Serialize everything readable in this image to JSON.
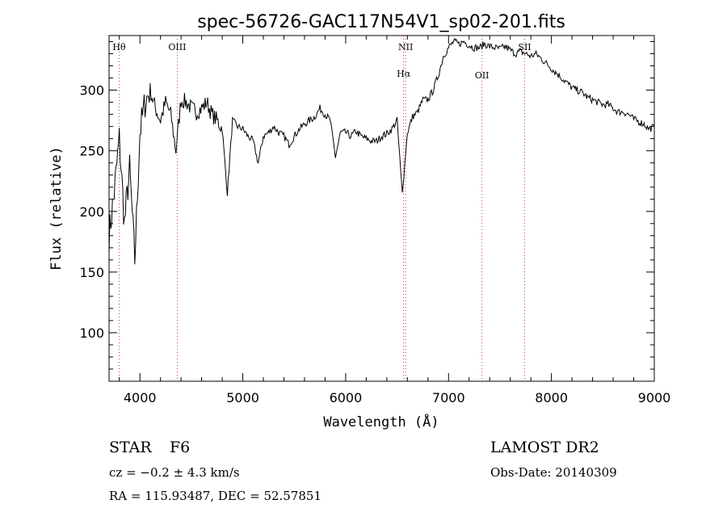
{
  "chart_data": {
    "type": "line",
    "title": "spec-56726-GAC117N54V1_sp02-201.fits",
    "xlabel": "Wavelength (Å)",
    "ylabel": "Flux (relative)",
    "xlim": [
      3700,
      9000
    ],
    "ylim": [
      60,
      345
    ],
    "x_ticks": [
      4000,
      5000,
      6000,
      7000,
      8000,
      9000
    ],
    "y_ticks": [
      100,
      150,
      200,
      250,
      300
    ],
    "grid": false,
    "line_color": "#000000",
    "marker_color": "#c04040",
    "series": [
      {
        "x": [
          3700,
          3750,
          3800,
          3850,
          3900,
          3950,
          4000,
          4050,
          4100,
          4150,
          4200,
          4250,
          4300,
          4350,
          4400,
          4450,
          4500,
          4550,
          4600,
          4650,
          4700,
          4750,
          4800,
          4850,
          4900,
          4950,
          5000,
          5050,
          5100,
          5150,
          5200,
          5250,
          5300,
          5350,
          5400,
          5450,
          5500,
          5550,
          5600,
          5650,
          5700,
          5750,
          5800,
          5850,
          5900,
          5950,
          6000,
          6050,
          6100,
          6150,
          6200,
          6250,
          6300,
          6350,
          6400,
          6450,
          6500,
          6550,
          6600,
          6650,
          6700,
          6750,
          6800,
          6850,
          6900,
          6950,
          7000,
          7050,
          7100,
          7150,
          7200,
          7250,
          7300,
          7350,
          7400,
          7450,
          7500,
          7550,
          7600,
          7650,
          7700,
          7750,
          7800,
          7850,
          7900,
          7950,
          8000,
          8050,
          8100,
          8150,
          8200,
          8250,
          8300,
          8350,
          8400,
          8450,
          8500,
          8550,
          8600,
          8650,
          8700,
          8750,
          8800,
          8850,
          8900,
          8950,
          9000
        ],
        "y": [
          180,
          215,
          260,
          190,
          235,
          160,
          265,
          290,
          300,
          285,
          275,
          290,
          280,
          250,
          292,
          290,
          285,
          282,
          285,
          290,
          280,
          275,
          268,
          215,
          275,
          270,
          268,
          262,
          258,
          240,
          262,
          265,
          270,
          265,
          262,
          255,
          262,
          268,
          272,
          275,
          278,
          285,
          280,
          275,
          245,
          265,
          265,
          262,
          266,
          262,
          260,
          258,
          258,
          262,
          264,
          268,
          275,
          215,
          265,
          278,
          282,
          292,
          292,
          300,
          312,
          328,
          335,
          340,
          338,
          340,
          337,
          335,
          335,
          338,
          336,
          335,
          334,
          336,
          333,
          330,
          332,
          330,
          328,
          330,
          326,
          322,
          318,
          314,
          310,
          306,
          302,
          300,
          298,
          294,
          292,
          290,
          288,
          288,
          285,
          282,
          282,
          280,
          276,
          274,
          272,
          268,
          270
        ]
      }
    ],
    "line_markers": [
      {
        "label": "Hθ",
        "x": 3798,
        "row": "top"
      },
      {
        "label": "OIII",
        "x": 4363,
        "row": "top"
      },
      {
        "label": "NII",
        "x": 6583,
        "row": "top"
      },
      {
        "label": "Hα",
        "x": 6563,
        "row": "second"
      },
      {
        "label": "OII",
        "x": 7325,
        "row": "third"
      },
      {
        "label": "SII",
        "x": 7740,
        "row": "top"
      }
    ]
  },
  "info": {
    "class_label": "STAR",
    "subclass": "F6",
    "survey": "LAMOST DR2",
    "cz": "cz = −0.2 ± 4.3 km/s",
    "obs_date": "Obs-Date: 20140309",
    "coords": "RA = 115.93487, DEC =  52.57851"
  }
}
